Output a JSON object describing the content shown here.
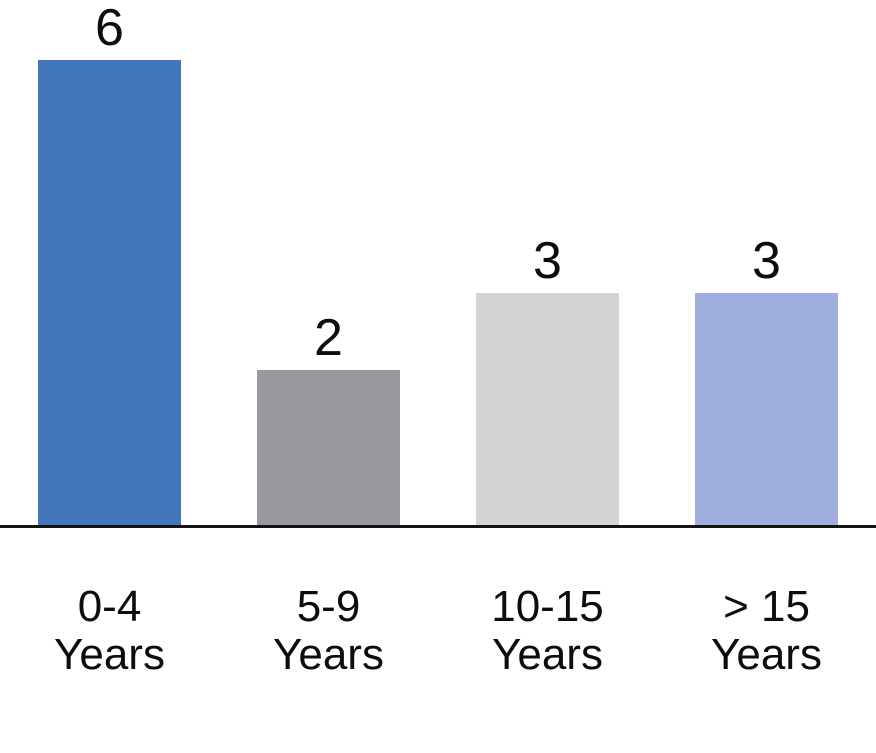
{
  "chart_data": {
    "type": "bar",
    "categories": [
      "0-4 Years",
      "5-9 Years",
      "10-15 Years",
      "> 15 Years"
    ],
    "values": [
      6,
      2,
      3,
      3
    ],
    "data_labels": [
      "6",
      "2",
      "3",
      "3"
    ],
    "tick_labels": [
      [
        "0-4",
        "Years"
      ],
      [
        "5-9",
        "Years"
      ],
      [
        "10-15",
        "Years"
      ],
      [
        "> 15",
        "Years"
      ]
    ],
    "bar_colors": [
      "#4277BC",
      "#97999C",
      "#D2D4D6",
      "#9FAEDC"
    ],
    "title": "",
    "xlabel": "",
    "ylabel": "",
    "ylim": [
      0,
      6
    ],
    "grid": false,
    "legend": false,
    "axis_line_color": "#141414",
    "label_text_color": "#0d0d0d",
    "background_color": "#ffffff"
  }
}
